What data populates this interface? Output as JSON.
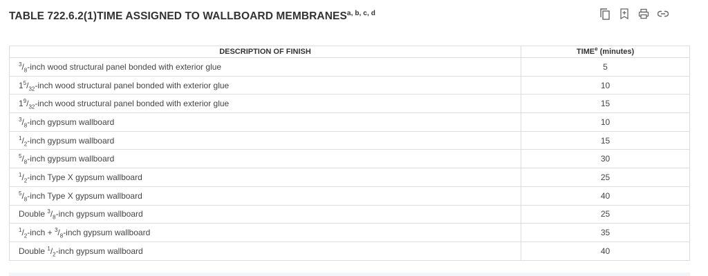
{
  "title": {
    "text": "TABLE 722.6.2(1)TIME ASSIGNED TO WALLBOARD MEMBRANES",
    "footnotes": "a, b, c, d"
  },
  "toolbar": {
    "icons": [
      "copy-icon",
      "bookmark-add-icon",
      "print-icon",
      "link-icon"
    ]
  },
  "table": {
    "headers": {
      "description": "DESCRIPTION OF FINISH",
      "time": "TIME",
      "time_sup": "e",
      "time_unit": " (minutes)"
    },
    "rows": [
      {
        "pre": "",
        "whole": "",
        "num": "3",
        "den": "8",
        "text": "-inch wood structural panel bonded with exterior glue",
        "time": "5"
      },
      {
        "pre": "",
        "whole": "1",
        "num": "5",
        "den": "32",
        "text": "-inch wood structural panel bonded with exterior glue",
        "time": "10"
      },
      {
        "pre": "",
        "whole": "1",
        "num": "9",
        "den": "32",
        "text": "-inch wood structural panel bonded with exterior glue",
        "time": "15"
      },
      {
        "pre": "",
        "whole": "",
        "num": "3",
        "den": "8",
        "text": "-inch gypsum wallboard",
        "time": "10"
      },
      {
        "pre": "",
        "whole": "",
        "num": "1",
        "den": "2",
        "text": "-inch gypsum wallboard",
        "time": "15"
      },
      {
        "pre": "",
        "whole": "",
        "num": "5",
        "den": "8",
        "text": "-inch gypsum wallboard",
        "time": "30"
      },
      {
        "pre": "",
        "whole": "",
        "num": "1",
        "den": "2",
        "text": "-inch Type X gypsum wallboard",
        "time": "25"
      },
      {
        "pre": "",
        "whole": "",
        "num": "5",
        "den": "8",
        "text": "-inch Type X gypsum wallboard",
        "time": "40"
      },
      {
        "pre": "Double ",
        "whole": "",
        "num": "3",
        "den": "8",
        "text": "-inch gypsum wallboard",
        "time": "25"
      },
      {
        "pre": "",
        "whole": "",
        "num": "1",
        "den": "2",
        "text": "-inch + ",
        "num2": "3",
        "den2": "8",
        "text2": "-inch gypsum wallboard",
        "time": "35"
      },
      {
        "pre": "Double ",
        "whole": "",
        "num": "1",
        "den": "2",
        "text": "-inch gypsum wallboard",
        "time": "40"
      }
    ]
  }
}
